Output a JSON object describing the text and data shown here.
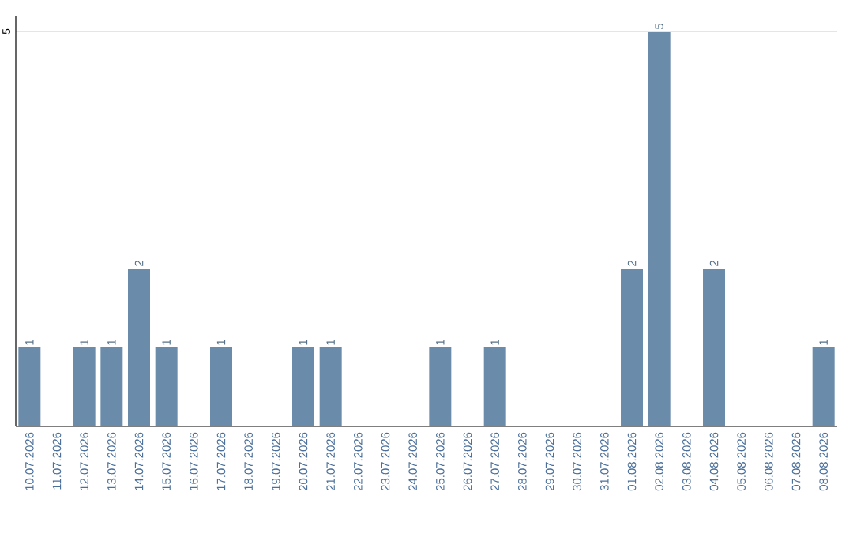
{
  "chart_data": {
    "type": "bar",
    "categories": [
      "10.07.2026",
      "11.07.2026",
      "12.07.2026",
      "13.07.2026",
      "14.07.2026",
      "15.07.2026",
      "16.07.2026",
      "17.07.2026",
      "18.07.2026",
      "19.07.2026",
      "20.07.2026",
      "21.07.2026",
      "22.07.2026",
      "23.07.2026",
      "24.07.2026",
      "25.07.2026",
      "26.07.2026",
      "27.07.2026",
      "28.07.2026",
      "29.07.2026",
      "30.07.2026",
      "31.07.2026",
      "01.08.2026",
      "02.08.2026",
      "03.08.2026",
      "04.08.2026",
      "05.08.2026",
      "06.08.2026",
      "07.08.2026",
      "08.08.2026"
    ],
    "values": [
      1,
      0,
      1,
      1,
      2,
      1,
      0,
      1,
      0,
      0,
      1,
      1,
      0,
      0,
      0,
      1,
      0,
      1,
      0,
      0,
      0,
      0,
      2,
      5,
      0,
      2,
      0,
      0,
      0,
      1
    ],
    "value_labels": [
      "1",
      null,
      "1",
      "1",
      "2",
      "1",
      null,
      "1",
      null,
      null,
      "1",
      "1",
      null,
      null,
      null,
      "1",
      null,
      "1",
      null,
      null,
      null,
      null,
      "2",
      "5",
      null,
      "2",
      null,
      null,
      null,
      "1"
    ],
    "color": "#6a8caa",
    "ylim": [
      0,
      5.2
    ],
    "yticks": [
      5
    ],
    "grid": "y"
  }
}
